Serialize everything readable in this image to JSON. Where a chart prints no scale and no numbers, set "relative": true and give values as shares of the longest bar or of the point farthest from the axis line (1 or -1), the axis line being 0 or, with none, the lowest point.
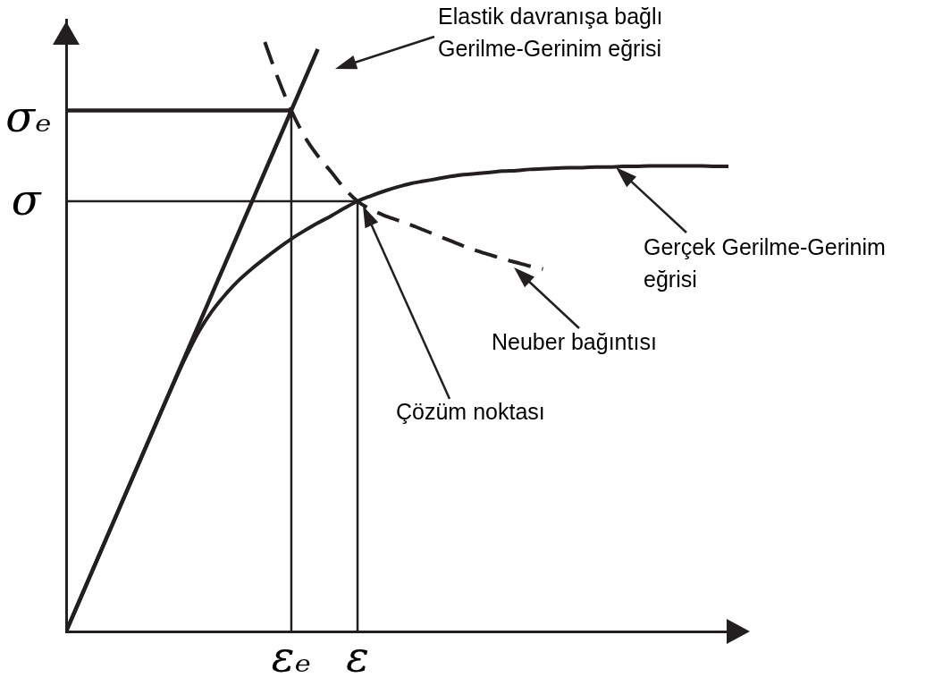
{
  "chart_data": {
    "type": "line",
    "relative": true,
    "tick_labels": "x",
    "grid": false,
    "legend": false,
    "marker": "none",
    "line_style": "solid",
    "categories": [
      null,
      null,
      null,
      null,
      null,
      null,
      null,
      null,
      null,
      null,
      null,
      null,
      null,
      null,
      null,
      null,
      null,
      "εₑ",
      null,
      null,
      null,
      null,
      "ε",
      null,
      null,
      null,
      null,
      null,
      null,
      null,
      null,
      null,
      null,
      null,
      null,
      null,
      null,
      null,
      null,
      null,
      null,
      null,
      null,
      null,
      null,
      null,
      null,
      null,
      null,
      null,
      null
    ],
    "series": [
      {
        "color": "#231f20",
        "values": [
          0,
          0.052,
          0.104,
          0.156,
          0.208,
          0.26,
          0.312,
          0.364,
          0.416,
          0.468,
          0.52,
          0.572,
          0.624,
          0.676,
          0.728,
          0.78,
          0.832,
          0.884,
          0.936,
          0.988,
          null,
          null,
          null,
          null,
          null,
          null,
          null,
          null,
          null,
          null,
          null,
          null,
          null,
          null,
          null,
          null,
          null,
          null,
          null,
          null,
          null,
          null,
          null,
          null,
          null,
          null,
          null,
          null,
          null,
          null,
          null
        ]
      },
      {
        "color": "#231f20",
        "values": [
          0,
          0.052,
          0.104,
          0.156,
          0.208,
          0.26,
          0.312,
          0.364,
          0.415,
          0.464,
          0.508,
          0.543,
          0.571,
          0.595,
          0.615,
          0.633,
          0.65,
          0.666,
          0.68,
          0.693,
          0.705,
          0.718,
          0.73,
          0.739,
          0.747,
          0.754,
          0.76,
          0.764,
          0.768,
          0.772,
          0.775,
          0.777,
          0.779,
          0.781,
          0.782,
          0.784,
          0.785,
          0.786,
          0.787,
          0.787,
          0.788,
          0.788,
          0.789,
          0.789,
          0.79,
          0.79,
          0.79,
          0.79,
          0.79,
          0.789,
          0.789
        ]
      },
      {
        "color": "#231f20",
        "line_style": "dashed",
        "values": [
          null,
          null,
          null,
          null,
          null,
          null,
          null,
          null,
          null,
          null,
          null,
          null,
          null,
          null,
          null,
          1,
          0.938,
          0.884,
          0.84,
          0.807,
          0.78,
          0.752,
          0.73,
          0.716,
          0.706,
          0.698,
          0.69,
          0.681,
          0.672,
          0.663,
          0.654,
          0.646,
          0.639,
          0.632,
          0.626,
          0.62,
          0.615,
          null,
          null,
          null,
          null,
          null,
          null,
          null,
          null,
          null,
          null,
          null,
          null,
          null,
          null
        ]
      },
      {
        "color": "#231f20",
        "values": [
          0.884,
          0.884,
          0.884,
          0.884,
          0.884,
          0.884,
          0.884,
          0.884,
          0.884,
          0.884,
          0.884,
          0.884,
          0.884,
          0.884,
          0.884,
          0.884,
          0.884,
          0.884,
          null,
          null,
          null,
          null,
          null,
          null,
          null,
          null,
          null,
          null,
          null,
          null,
          null,
          null,
          null,
          null,
          null,
          null,
          null,
          null,
          null,
          null,
          null,
          null,
          null,
          null,
          null,
          null,
          null,
          null,
          null,
          null,
          null
        ]
      },
      {
        "color": "#231f20",
        "x": [
          "εₑ",
          "εₑ"
        ],
        "values": [
          0.884,
          0
        ]
      },
      {
        "color": "#231f20",
        "values": [
          0.73,
          0.73,
          0.73,
          0.73,
          0.73,
          0.73,
          0.73,
          0.73,
          0.73,
          0.73,
          0.73,
          0.73,
          0.73,
          0.73,
          0.73,
          0.73,
          0.73,
          0.73,
          0.73,
          0.73,
          0.73,
          0.73,
          0.73,
          null,
          null,
          null,
          null,
          null,
          null,
          null,
          null,
          null,
          null,
          null,
          null,
          null,
          null,
          null,
          null,
          null,
          null,
          null,
          null,
          null,
          null,
          null,
          null,
          null,
          null,
          null,
          null
        ]
      },
      {
        "color": "#231f20",
        "x": [
          "ε",
          "ε"
        ],
        "values": [
          0.73,
          0
        ]
      }
    ],
    "annotations": [
      "σₑ",
      "σ",
      "Elastik davranışa bağlı Gerilme-Gerinim eğrisi",
      "Gerçek Gerilme-Gerinim eğrisi",
      "Neuber bağıntısı",
      "Çözüm noktası"
    ]
  }
}
